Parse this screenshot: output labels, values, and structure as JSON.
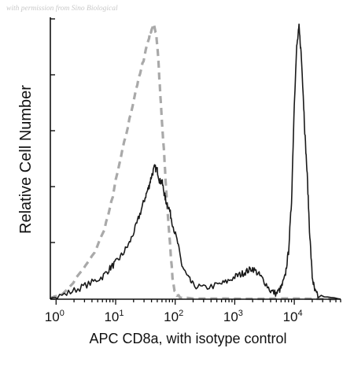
{
  "watermark": "with permission from Sino Biological",
  "chart_data": {
    "type": "line",
    "xscale": "log",
    "xlim": [
      0.8,
      60000
    ],
    "ylim": [
      0,
      100
    ],
    "x_ticks": [
      {
        "base": "10",
        "exp": "0",
        "value": 1
      },
      {
        "base": "10",
        "exp": "1",
        "value": 10
      },
      {
        "base": "10",
        "exp": "2",
        "value": 100
      },
      {
        "base": "10",
        "exp": "3",
        "value": 1000
      },
      {
        "base": "10",
        "exp": "4",
        "value": 10000
      }
    ],
    "xlabel": "APC CD8a, with isotype control",
    "ylabel": "Relative Cell Number",
    "colors": {
      "stained": "#1a1a1a",
      "isotype": "#a9a9a9"
    },
    "series": [
      {
        "key": "isotype",
        "style": "dashed",
        "x": [
          0.8,
          1.5,
          2.5,
          4,
          6,
          8,
          10,
          13,
          17,
          22,
          27,
          32,
          38,
          43,
          48,
          52,
          55,
          60,
          65,
          70,
          80,
          90,
          100,
          130,
          200,
          1000,
          60000
        ],
        "y": [
          0,
          3,
          9,
          15,
          23,
          32,
          42,
          53,
          64,
          75,
          82,
          89,
          95,
          98,
          95,
          86,
          76,
          63,
          52,
          40,
          22,
          8,
          2,
          0.5,
          0,
          0,
          0
        ]
      },
      {
        "key": "stained",
        "style": "solid",
        "x": [
          0.8,
          1.5,
          2.5,
          4,
          6,
          8,
          10,
          13,
          17,
          22,
          27,
          32,
          36,
          40,
          45,
          50,
          55,
          60,
          65,
          70,
          80,
          90,
          110,
          130,
          160,
          200,
          300,
          500,
          700,
          1000,
          1300,
          1600,
          2000,
          2500,
          3000,
          4000,
          5000,
          6000,
          7000,
          8000,
          9000,
          10000,
          11000,
          12000,
          13000,
          14000,
          15000,
          16500,
          18000,
          20000,
          22000,
          25000,
          60000
        ],
        "y": [
          0,
          2,
          4,
          6,
          8,
          11,
          13,
          16,
          20,
          26,
          32,
          37,
          40,
          44,
          47,
          46,
          42,
          42,
          38,
          35,
          32,
          27,
          20,
          12,
          8,
          5,
          4,
          5,
          6,
          8,
          9,
          10,
          11,
          9,
          7,
          3,
          2,
          4,
          8,
          17,
          35,
          70,
          90,
          97,
          88,
          75,
          60,
          44,
          25,
          8,
          3,
          1,
          0
        ]
      }
    ]
  }
}
